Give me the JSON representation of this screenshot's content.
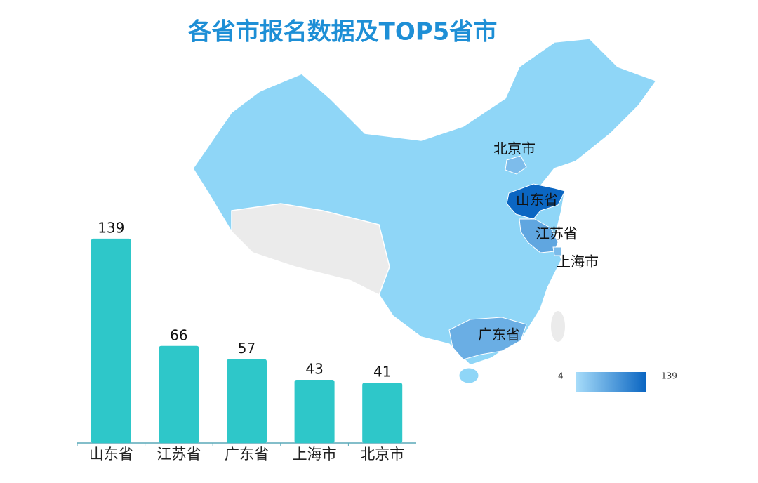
{
  "chart_data": [
    {
      "type": "bar",
      "title": "各省市报名数据及TOP5省市",
      "categories": [
        "山东省",
        "江苏省",
        "广东省",
        "上海市",
        "北京市"
      ],
      "values": [
        139,
        66,
        57,
        43,
        41
      ],
      "color": "#2ec7c9"
    },
    {
      "type": "map",
      "labels": [
        "北京市",
        "山东省",
        "江苏省",
        "上海市",
        "广东省"
      ],
      "visual_range": [
        4,
        139
      ],
      "colors": [
        "#a8ddfa",
        "#0b66c2"
      ]
    }
  ]
}
